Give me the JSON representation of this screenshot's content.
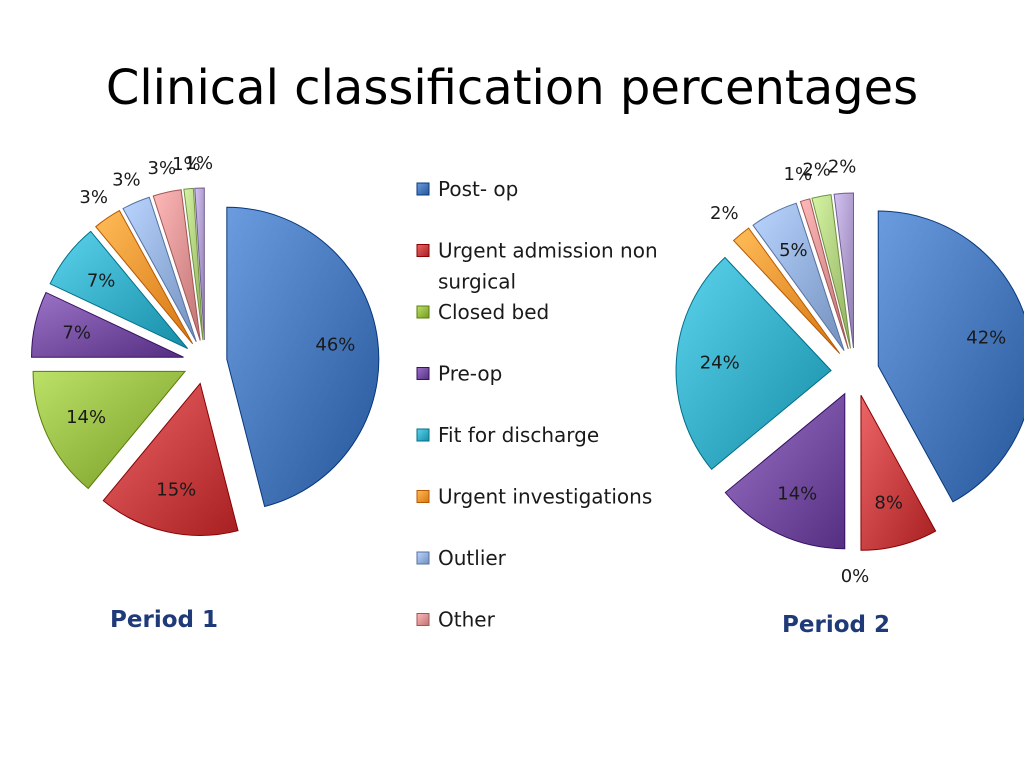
{
  "slide": {
    "title": "Clinical classification percentages"
  },
  "chart_data": {
    "type": "pie",
    "categories": [
      "Post- op",
      "Urgent admission non surgical",
      "Closed bed",
      "Pre-op",
      "Fit for discharge",
      "Urgent investigations",
      "Outlier",
      "Other",
      "",
      ""
    ],
    "colors": [
      "#3f6fb3",
      "#c0383a",
      "#8fb43c",
      "#6e479b",
      "#2fa6c0",
      "#ef8f2b",
      "#8ca8d6",
      "#d98c8c",
      "#a8c878",
      "#a795c6"
    ],
    "legend": [
      {
        "label": "Post- op",
        "color": "#3f6fb3"
      },
      {
        "label": "Urgent admission non surgical",
        "color": "#c0383a"
      },
      {
        "label": "Closed bed",
        "color": "#8fb43c"
      },
      {
        "label": "Pre-op",
        "color": "#6e479b"
      },
      {
        "label": "Fit for discharge",
        "color": "#2fa6c0"
      },
      {
        "label": "Urgent investigations",
        "color": "#ef8f2b"
      },
      {
        "label": "Outlier",
        "color": "#8ca8d6"
      },
      {
        "label": "Other",
        "color": "#d98c8c"
      }
    ],
    "charts": [
      {
        "name": "Period 1",
        "values": [
          46,
          15,
          14,
          7,
          7,
          3,
          3,
          3,
          1,
          1
        ],
        "labels": [
          "46%",
          "15%",
          "14%",
          "7%",
          "7%",
          "3%",
          "3%",
          "3%",
          "1%",
          "1%"
        ]
      },
      {
        "name": "Period 2",
        "values": [
          42,
          8,
          0,
          14,
          24,
          2,
          5,
          1,
          2,
          2
        ],
        "labels": [
          "42%",
          "8%",
          "0%",
          "14%",
          "24%",
          "2%",
          "5%",
          "1%",
          "2%",
          "2%"
        ]
      }
    ]
  }
}
